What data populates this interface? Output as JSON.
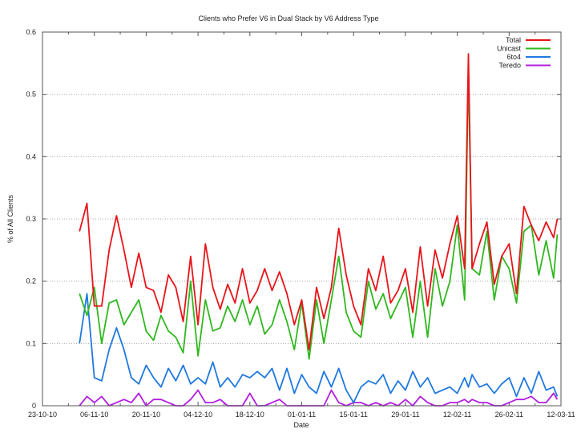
{
  "chart_data": {
    "type": "line",
    "title": "Clients who Prefer V6 in Dual Stack by V6 Address Type",
    "xlabel": "Date",
    "ylabel": "% of All Clients",
    "xlim": [
      "2010-10-23",
      "2011-03-12"
    ],
    "ylim": [
      0,
      0.6
    ],
    "x_tick_labels": [
      "23-10-10",
      "06-11-10",
      "20-11-10",
      "04-12-10",
      "18-12-10",
      "01-01-11",
      "15-01-11",
      "29-01-11",
      "12-02-11",
      "26-02-11",
      "12-03-11"
    ],
    "y_tick_labels": [
      "0",
      "0.1",
      "0.2",
      "0.3",
      "0.4",
      "0.5",
      "0.6"
    ],
    "grid": "horizontal dotted",
    "legend_position": "top-right",
    "x": [
      "2010-11-02",
      "2010-11-04",
      "2010-11-06",
      "2010-11-08",
      "2010-11-10",
      "2010-11-12",
      "2010-11-14",
      "2010-11-16",
      "2010-11-18",
      "2010-11-20",
      "2010-11-22",
      "2010-11-24",
      "2010-11-26",
      "2010-11-28",
      "2010-11-30",
      "2010-12-02",
      "2010-12-04",
      "2010-12-06",
      "2010-12-08",
      "2010-12-10",
      "2010-12-12",
      "2010-12-14",
      "2010-12-16",
      "2010-12-18",
      "2010-12-20",
      "2010-12-22",
      "2010-12-24",
      "2010-12-26",
      "2010-12-28",
      "2010-12-30",
      "2011-01-01",
      "2011-01-03",
      "2011-01-05",
      "2011-01-07",
      "2011-01-09",
      "2011-01-11",
      "2011-01-13",
      "2011-01-15",
      "2011-01-17",
      "2011-01-19",
      "2011-01-21",
      "2011-01-23",
      "2011-01-25",
      "2011-01-27",
      "2011-01-29",
      "2011-01-31",
      "2011-02-02",
      "2011-02-04",
      "2011-02-06",
      "2011-02-08",
      "2011-02-10",
      "2011-02-12",
      "2011-02-14",
      "2011-02-15",
      "2011-02-16",
      "2011-02-18",
      "2011-02-20",
      "2011-02-22",
      "2011-02-24",
      "2011-02-26",
      "2011-02-28",
      "2011-03-02",
      "2011-03-04",
      "2011-03-06",
      "2011-03-08",
      "2011-03-10",
      "2011-03-11"
    ],
    "series": [
      {
        "name": "Total",
        "color": "#e8141a",
        "values": [
          0.28,
          0.325,
          0.16,
          0.16,
          0.25,
          0.305,
          0.25,
          0.19,
          0.245,
          0.19,
          0.185,
          0.15,
          0.21,
          0.19,
          0.135,
          0.24,
          0.13,
          0.26,
          0.19,
          0.155,
          0.195,
          0.165,
          0.22,
          0.165,
          0.185,
          0.22,
          0.185,
          0.215,
          0.18,
          0.13,
          0.17,
          0.09,
          0.19,
          0.14,
          0.19,
          0.285,
          0.21,
          0.16,
          0.13,
          0.22,
          0.185,
          0.24,
          0.165,
          0.185,
          0.22,
          0.15,
          0.255,
          0.16,
          0.25,
          0.205,
          0.26,
          0.305,
          0.22,
          0.565,
          0.22,
          0.26,
          0.295,
          0.195,
          0.24,
          0.26,
          0.18,
          0.32,
          0.29,
          0.265,
          0.295,
          0.27,
          0.3
        ]
      },
      {
        "name": "Unicast",
        "color": "#2fb81e",
        "values": [
          0.18,
          0.145,
          0.19,
          0.1,
          0.165,
          0.17,
          0.13,
          0.15,
          0.17,
          0.12,
          0.105,
          0.145,
          0.12,
          0.11,
          0.085,
          0.2,
          0.08,
          0.17,
          0.12,
          0.125,
          0.16,
          0.135,
          0.17,
          0.13,
          0.16,
          0.115,
          0.13,
          0.17,
          0.135,
          0.09,
          0.165,
          0.075,
          0.17,
          0.1,
          0.17,
          0.24,
          0.15,
          0.12,
          0.11,
          0.2,
          0.155,
          0.18,
          0.14,
          0.165,
          0.19,
          0.11,
          0.2,
          0.11,
          0.22,
          0.16,
          0.2,
          0.29,
          0.17,
          0.54,
          0.22,
          0.21,
          0.28,
          0.17,
          0.24,
          0.22,
          0.165,
          0.28,
          0.29,
          0.21,
          0.265,
          0.205,
          0.275
        ]
      },
      {
        "name": "6to4",
        "color": "#1f78e0",
        "values": [
          0.1,
          0.18,
          0.045,
          0.04,
          0.09,
          0.125,
          0.09,
          0.045,
          0.035,
          0.065,
          0.045,
          0.03,
          0.06,
          0.04,
          0.065,
          0.035,
          0.045,
          0.035,
          0.07,
          0.03,
          0.045,
          0.03,
          0.05,
          0.045,
          0.055,
          0.045,
          0.06,
          0.025,
          0.06,
          0.02,
          0.05,
          0.03,
          0.02,
          0.055,
          0.03,
          0.06,
          0.025,
          0.005,
          0.03,
          0.04,
          0.035,
          0.05,
          0.02,
          0.04,
          0.025,
          0.055,
          0.03,
          0.045,
          0.02,
          0.025,
          0.03,
          0.02,
          0.045,
          0.03,
          0.05,
          0.03,
          0.035,
          0.02,
          0.035,
          0.045,
          0.015,
          0.045,
          0.02,
          0.055,
          0.025,
          0.03,
          0.015
        ]
      },
      {
        "name": "Teredo",
        "color": "#b31ee0",
        "values": [
          0,
          0.015,
          0.005,
          0.015,
          0,
          0.005,
          0.01,
          0.005,
          0.02,
          0,
          0.01,
          0.01,
          0.005,
          0,
          0,
          0.01,
          0.025,
          0.005,
          0.005,
          0.01,
          0,
          0,
          0,
          0.02,
          0,
          0,
          0.005,
          0.01,
          0,
          0,
          0,
          0,
          0,
          0,
          0.025,
          0.005,
          0,
          0.005,
          0.005,
          0,
          0.005,
          0,
          0.005,
          0,
          0.01,
          0,
          0.015,
          0.005,
          0,
          0,
          0.005,
          0.005,
          0.01,
          0.005,
          0.01,
          0.005,
          0.005,
          0,
          0,
          0.005,
          0.01,
          0.01,
          0.015,
          0.005,
          0.005,
          0.02,
          0.01
        ]
      }
    ]
  }
}
